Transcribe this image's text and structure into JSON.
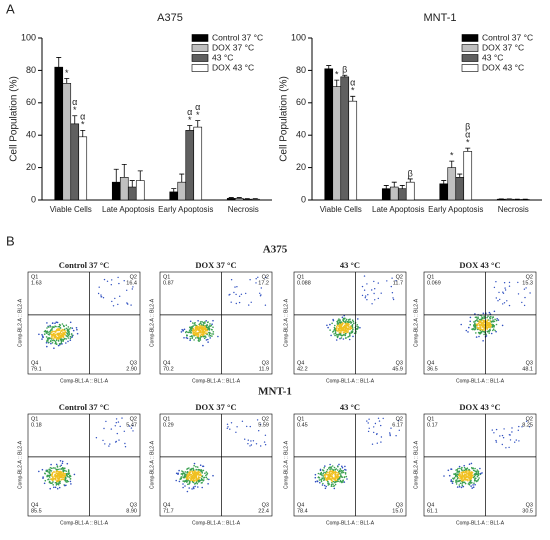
{
  "panel_labels": [
    "A",
    "B"
  ],
  "chart_data": [
    {
      "type": "bar",
      "title": "A375",
      "ylabel": "Cell Population (%)",
      "categories": [
        "Viable Cells",
        "Late Apoptosis",
        "Early Apoptosis",
        "Necrosis"
      ],
      "ylim": [
        0,
        100
      ],
      "yticks": [
        0,
        20,
        40,
        60,
        80,
        100
      ],
      "legend": "upper right",
      "error_bars": true,
      "series": [
        {
          "name": "Control 37 °C",
          "color": "#000000",
          "values": [
            82,
            11,
            5,
            1
          ],
          "errors": [
            6,
            8,
            2,
            0.5
          ],
          "annotations": [
            null,
            null,
            null,
            null
          ]
        },
        {
          "name": "DOX 37 °C",
          "color": "#c0c0c0",
          "values": [
            72,
            14,
            11,
            1
          ],
          "errors": [
            3,
            8,
            5,
            0.5
          ],
          "annotations": [
            [
              "*"
            ],
            null,
            null,
            null
          ]
        },
        {
          "name": "43 °C",
          "color": "#606060",
          "values": [
            47,
            8,
            43,
            0.5
          ],
          "errors": [
            5,
            4,
            3,
            0.3
          ],
          "annotations": [
            [
              "α",
              "*"
            ],
            null,
            [
              "α",
              "*"
            ],
            null
          ]
        },
        {
          "name": "DOX 43 °C",
          "color": "#ffffff",
          "values": [
            39,
            12,
            45,
            0.5
          ],
          "errors": [
            4,
            6,
            4,
            0.3
          ],
          "annotations": [
            [
              "α",
              "*"
            ],
            null,
            [
              "α",
              "*"
            ],
            null
          ]
        }
      ]
    },
    {
      "type": "bar",
      "title": "MNT-1",
      "ylabel": "Cell Population (%)",
      "categories": [
        "Viable Cells",
        "Late Apoptosis",
        "Early Apoptosis",
        "Necrosis"
      ],
      "ylim": [
        0,
        100
      ],
      "yticks": [
        0,
        20,
        40,
        60,
        80,
        100
      ],
      "legend": "upper right",
      "error_bars": true,
      "series": [
        {
          "name": "Control 37 °C",
          "color": "#000000",
          "values": [
            81,
            7,
            10,
            0.5
          ],
          "errors": [
            2,
            2,
            2,
            0.2
          ],
          "annotations": [
            null,
            null,
            null,
            null
          ]
        },
        {
          "name": "DOX 37 °C",
          "color": "#c0c0c0",
          "values": [
            70,
            8,
            20,
            0.5
          ],
          "errors": [
            4,
            3,
            4,
            0.2
          ],
          "annotations": [
            [
              "*"
            ],
            null,
            [
              "*"
            ],
            null
          ]
        },
        {
          "name": "43 °C",
          "color": "#606060",
          "values": [
            76,
            7,
            14,
            0.3
          ],
          "errors": [
            1,
            2,
            2,
            0.2
          ],
          "annotations": [
            [
              "β"
            ],
            null,
            null,
            null
          ]
        },
        {
          "name": "DOX 43 °C",
          "color": "#ffffff",
          "values": [
            61,
            11,
            30,
            0.3
          ],
          "errors": [
            3,
            2,
            2,
            0.2
          ],
          "annotations": [
            [
              "α",
              "*"
            ],
            [
              "β"
            ],
            [
              "β",
              "α",
              "*"
            ],
            null
          ]
        }
      ]
    }
  ],
  "flow": {
    "xlabel": "Comp-BL1-A :: BL1-A",
    "ylabel": "Comp-BL2-A :: BL2-A",
    "quadrants": [
      "Q1",
      "Q2",
      "Q3",
      "Q4"
    ],
    "rows": [
      {
        "title": "A375",
        "panels": [
          {
            "title": "Control 37 °C",
            "q": [
              "1.63",
              "16.4",
              "2.90",
              "79.1"
            ]
          },
          {
            "title": "DOX 37 °C",
            "q": [
              "0.87",
              "17.2",
              "11.9",
              "70.2"
            ]
          },
          {
            "title": "43 °C",
            "q": [
              "0.088",
              "11.7",
              "45.9",
              "42.2"
            ]
          },
          {
            "title": "DOX 43 °C",
            "q": [
              "0.069",
              "15.3",
              "48.1",
              "36.5"
            ]
          }
        ]
      },
      {
        "title": "MNT-1",
        "panels": [
          {
            "title": "Control 37 °C",
            "q": [
              "0.18",
              "5.47",
              "8.90",
              "85.5"
            ]
          },
          {
            "title": "DOX 37 °C",
            "q": [
              "0.29",
              "5.59",
              "22.4",
              "71.7"
            ]
          },
          {
            "title": "43 °C",
            "q": [
              "0.45",
              "6.17",
              "15.0",
              "78.4"
            ]
          },
          {
            "title": "DOX 43 °C",
            "q": [
              "0.17",
              "8.25",
              "30.5",
              "61.1"
            ]
          }
        ]
      }
    ]
  }
}
